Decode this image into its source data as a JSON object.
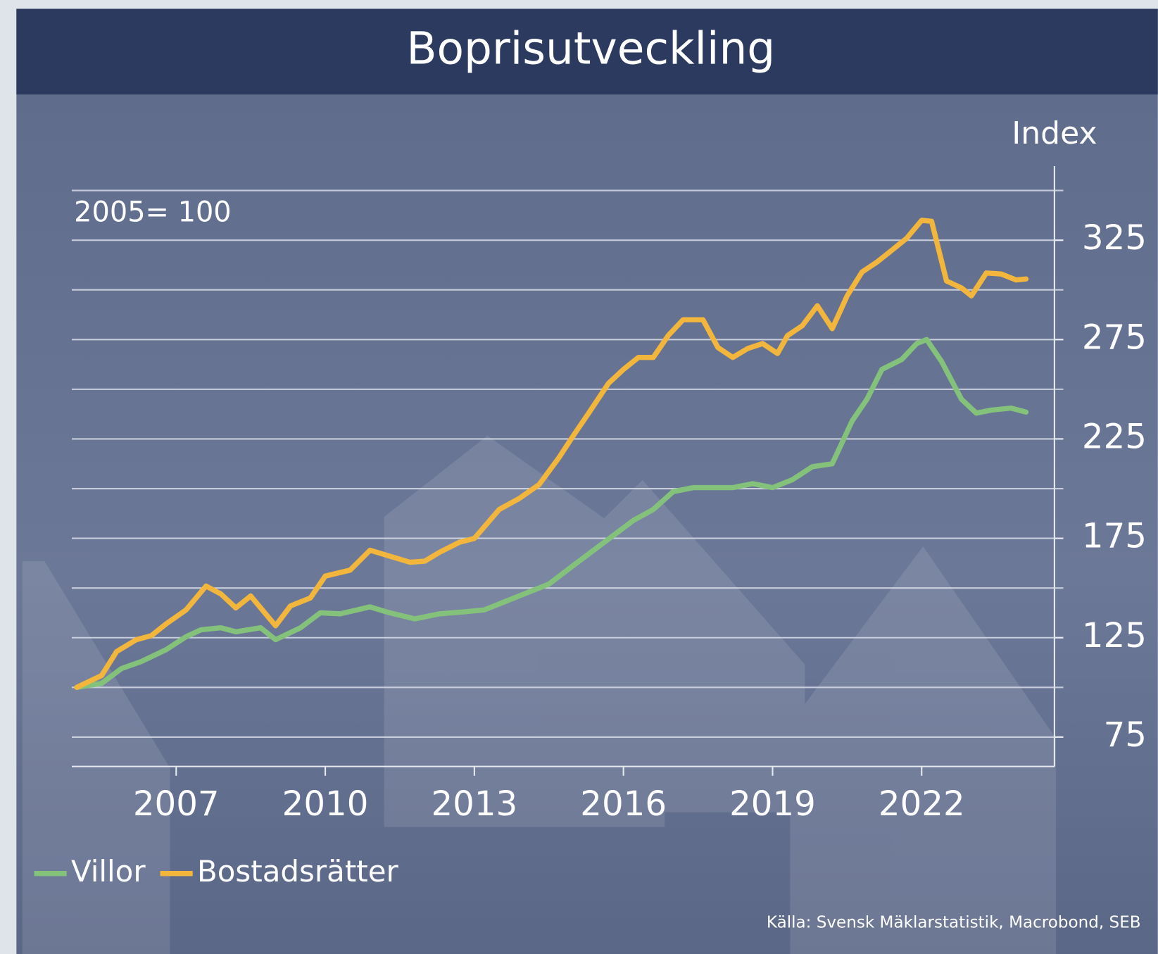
{
  "chart_data": {
    "type": "line",
    "title": "Boprisutveckling",
    "y_axis_label": "Index",
    "annotation": "2005= 100",
    "source": "Källa: Svensk Mäklarstatistik, Macrobond, SEB",
    "xlim": [
      2004.9,
      2024.85
    ],
    "xticks": [
      2007,
      2010,
      2013,
      2016,
      2019,
      2022
    ],
    "ylim": [
      60,
      350
    ],
    "yticks": [
      75,
      125,
      175,
      225,
      275,
      325
    ],
    "ygrid": [
      75,
      100,
      125,
      150,
      175,
      200,
      225,
      250,
      275,
      300,
      325,
      350
    ],
    "grid": true,
    "legend": "bottom-left",
    "series": [
      {
        "name": "Villor",
        "color": "#84c27c",
        "x": [
          2005.0,
          2005.5,
          2005.9,
          2006.3,
          2006.8,
          2007.2,
          2007.5,
          2007.9,
          2008.2,
          2008.7,
          2009.0,
          2009.5,
          2009.9,
          2010.3,
          2010.9,
          2011.3,
          2011.8,
          2012.3,
          2012.8,
          2013.2,
          2013.6,
          2014.0,
          2014.5,
          2015.0,
          2015.4,
          2015.8,
          2016.2,
          2016.6,
          2017.0,
          2017.4,
          2017.8,
          2018.2,
          2018.6,
          2019.0,
          2019.4,
          2019.8,
          2020.2,
          2020.6,
          2020.9,
          2021.2,
          2021.6,
          2021.9,
          2022.1,
          2022.4,
          2022.8,
          2023.1,
          2023.4,
          2023.8,
          2024.1
        ],
        "values": [
          100,
          102,
          109.5,
          113,
          119,
          125.5,
          129,
          130,
          128,
          130,
          124,
          130,
          137.5,
          137,
          140.5,
          137.5,
          134.5,
          137,
          138,
          139,
          143,
          147,
          152,
          161.5,
          169,
          176.5,
          184,
          189.5,
          198.5,
          200.5,
          200.5,
          200.5,
          202.5,
          200.5,
          204.5,
          211,
          212.5,
          234,
          245,
          260,
          265,
          273,
          275,
          264,
          245,
          238,
          239.5,
          240.5,
          238.5
        ]
      },
      {
        "name": "Bostadsrätter",
        "color": "#f2b63c",
        "x": [
          2005.0,
          2005.5,
          2005.8,
          2006.2,
          2006.5,
          2006.8,
          2007.2,
          2007.6,
          2007.9,
          2008.2,
          2008.5,
          2008.8,
          2009.0,
          2009.3,
          2009.7,
          2010.0,
          2010.5,
          2010.9,
          2011.3,
          2011.7,
          2012.0,
          2012.3,
          2012.7,
          2013.0,
          2013.5,
          2013.9,
          2014.3,
          2014.7,
          2015.0,
          2015.3,
          2015.7,
          2016.0,
          2016.3,
          2016.6,
          2016.9,
          2017.2,
          2017.6,
          2017.9,
          2018.2,
          2018.5,
          2018.8,
          2019.1,
          2019.3,
          2019.6,
          2019.9,
          2020.2,
          2020.5,
          2020.8,
          2021.1,
          2021.4,
          2021.7,
          2022.0,
          2022.2,
          2022.5,
          2022.8,
          2023.0,
          2023.3,
          2023.6,
          2023.9,
          2024.1
        ],
        "values": [
          100,
          106,
          118,
          124,
          126,
          132,
          139,
          151,
          147,
          140,
          146,
          137,
          131,
          141,
          145,
          156,
          159,
          169,
          166,
          163,
          163.5,
          168,
          173,
          175,
          189.5,
          195,
          202,
          215.5,
          227,
          238,
          253,
          260,
          266,
          266,
          277,
          285,
          285,
          271,
          266,
          270.5,
          273,
          268,
          277,
          282,
          292,
          280.5,
          297,
          309,
          314,
          320,
          326,
          335,
          334.5,
          304.5,
          301,
          297,
          308.5,
          308,
          305,
          305.5
        ]
      }
    ]
  }
}
